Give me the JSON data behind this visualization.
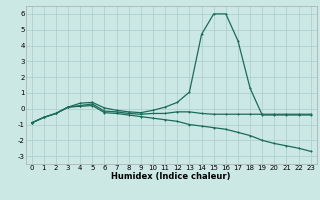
{
  "title": "",
  "xlabel": "Humidex (Indice chaleur)",
  "ylabel": "",
  "bg_color": "#cce8e4",
  "grid_color": "#aaccca",
  "line_color": "#1a6b5a",
  "spine_color": "#aaaaaa",
  "xlim": [
    -0.5,
    23.5
  ],
  "ylim": [
    -3.5,
    6.5
  ],
  "xticks": [
    0,
    1,
    2,
    3,
    4,
    5,
    6,
    7,
    8,
    9,
    10,
    11,
    12,
    13,
    14,
    15,
    16,
    17,
    18,
    19,
    20,
    21,
    22,
    23
  ],
  "yticks": [
    -3,
    -2,
    -1,
    0,
    1,
    2,
    3,
    4,
    5,
    6
  ],
  "series": [
    [
      -0.9,
      -0.55,
      -0.3,
      0.1,
      0.35,
      0.4,
      0.05,
      -0.1,
      -0.2,
      -0.25,
      -0.1,
      0.1,
      0.4,
      1.05,
      4.7,
      6.0,
      6.0,
      4.3,
      1.3,
      -0.4,
      -0.4,
      -0.4,
      -0.4,
      -0.4
    ],
    [
      -0.9,
      -0.55,
      -0.3,
      0.1,
      0.2,
      0.3,
      -0.15,
      -0.2,
      -0.3,
      -0.35,
      -0.3,
      -0.3,
      -0.2,
      -0.2,
      -0.3,
      -0.35,
      -0.35,
      -0.35,
      -0.35,
      -0.35,
      -0.35,
      -0.35,
      -0.35,
      -0.35
    ],
    [
      -0.9,
      -0.55,
      -0.3,
      0.1,
      0.15,
      0.2,
      -0.25,
      -0.3,
      -0.4,
      -0.5,
      -0.6,
      -0.7,
      -0.8,
      -1.0,
      -1.1,
      -1.2,
      -1.3,
      -1.5,
      -1.7,
      -2.0,
      -2.2,
      -2.35,
      -2.5,
      -2.7
    ]
  ],
  "xlabel_fontsize": 6.0,
  "tick_fontsize": 5.0,
  "marker_size": 2.0,
  "linewidth": 0.9
}
